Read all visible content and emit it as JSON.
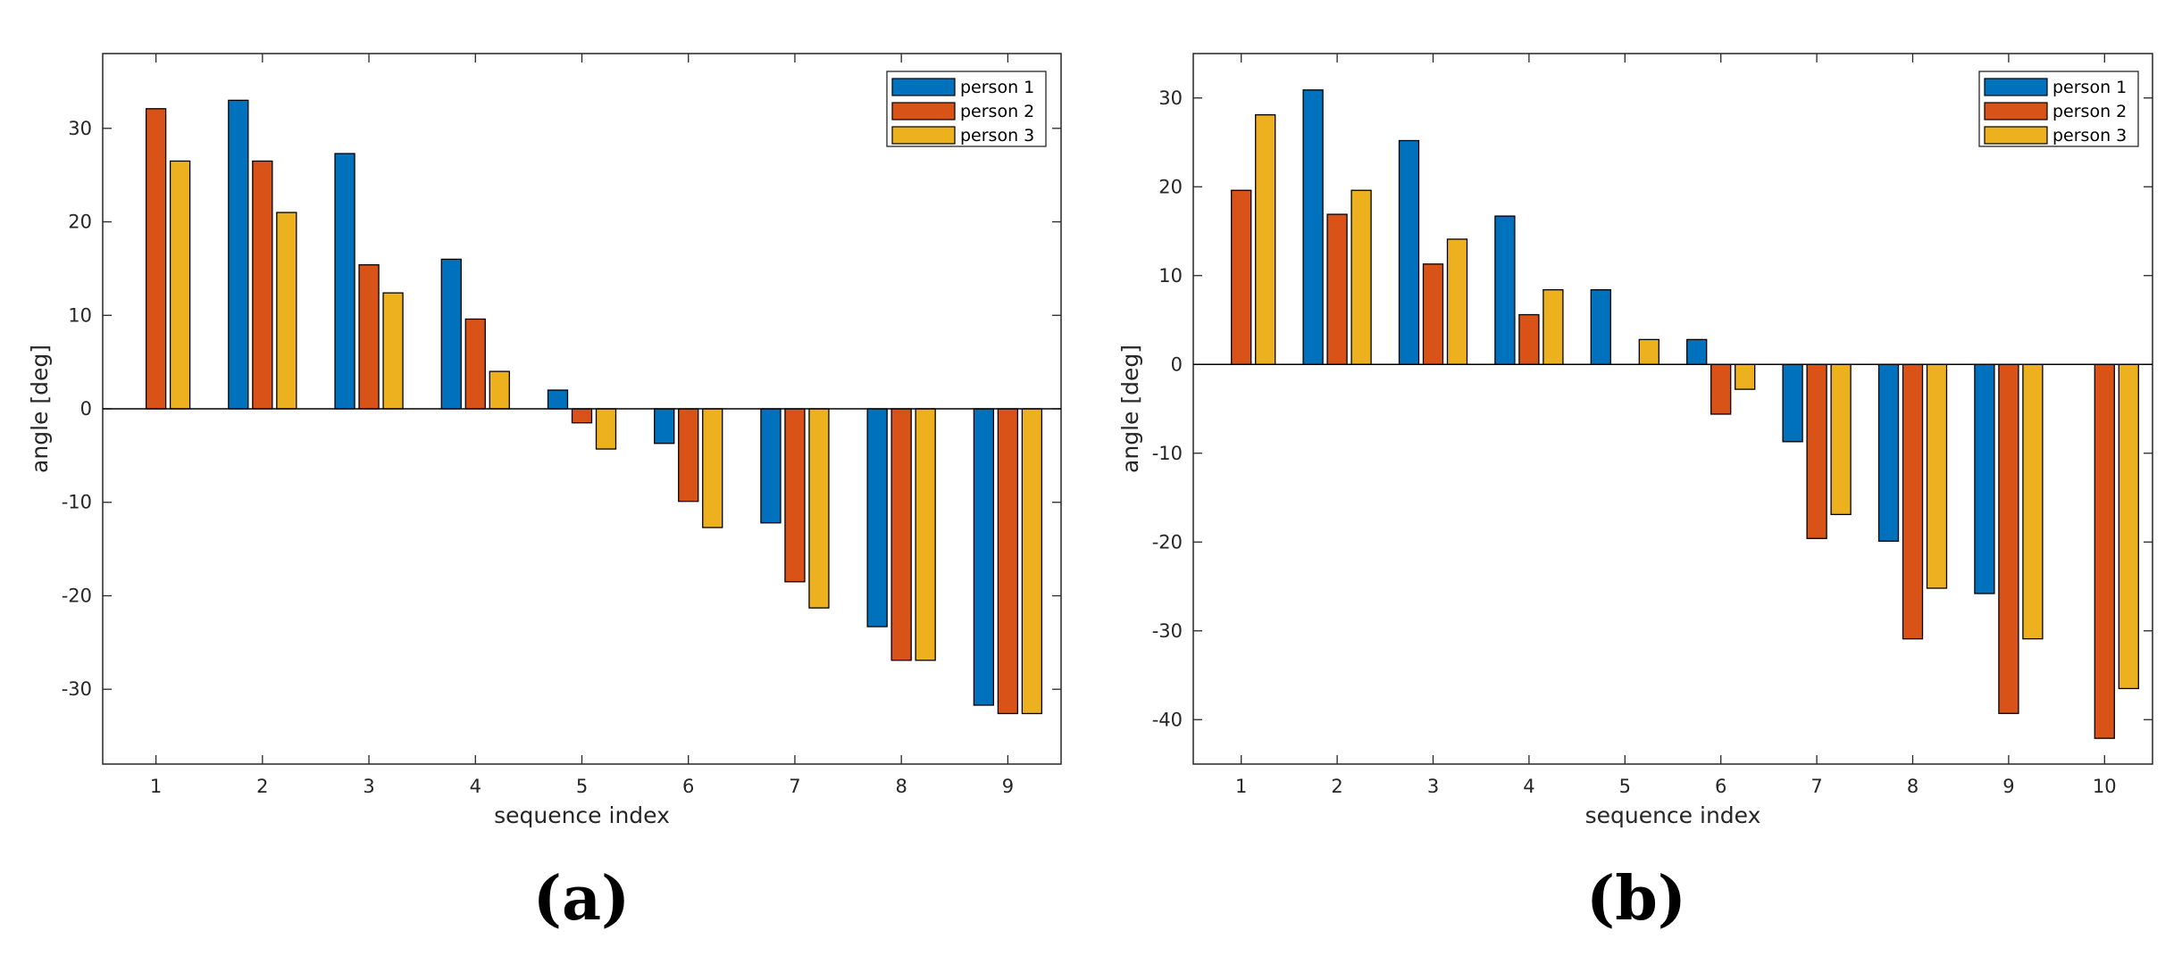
{
  "chart_data": [
    {
      "type": "bar",
      "panel_label": "(a)",
      "xlabel": "sequence index",
      "ylabel": "angle [deg]",
      "categories": [
        "1",
        "2",
        "3",
        "4",
        "5",
        "6",
        "7",
        "8",
        "9"
      ],
      "ylim": [
        -38,
        38
      ],
      "yticks": [
        -30,
        -20,
        -10,
        0,
        10,
        20,
        30
      ],
      "legend_position": "top-right",
      "series": [
        {
          "name": "person 1",
          "color": "#0072bd",
          "values": [
            0,
            33,
            27.3,
            16,
            2,
            -3.7,
            -12.2,
            -23.3,
            -31.7
          ]
        },
        {
          "name": "person 2",
          "color": "#d95319",
          "values": [
            32.1,
            26.5,
            15.4,
            9.6,
            -1.5,
            -9.9,
            -18.5,
            -26.9,
            -32.6
          ]
        },
        {
          "name": "person 3",
          "color": "#edb120",
          "values": [
            26.5,
            21,
            12.4,
            4,
            -4.3,
            -12.7,
            -21.3,
            -26.9,
            -32.6
          ]
        }
      ]
    },
    {
      "type": "bar",
      "panel_label": "(b)",
      "xlabel": "sequence index",
      "ylabel": "angle [deg]",
      "categories": [
        "1",
        "2",
        "3",
        "4",
        "5",
        "6",
        "7",
        "8",
        "9",
        "10"
      ],
      "ylim": [
        -45,
        35
      ],
      "yticks": [
        -40,
        -30,
        -20,
        -10,
        0,
        10,
        20,
        30
      ],
      "legend_position": "top-right",
      "series": [
        {
          "name": "person 1",
          "color": "#0072bd",
          "values": [
            0,
            30.9,
            25.2,
            16.7,
            8.4,
            2.8,
            -8.7,
            -19.9,
            -25.8,
            0
          ]
        },
        {
          "name": "person 2",
          "color": "#d95319",
          "values": [
            19.6,
            16.9,
            11.3,
            5.6,
            0,
            -5.6,
            -19.6,
            -30.9,
            -39.3,
            -42.1
          ]
        },
        {
          "name": "person 3",
          "color": "#edb120",
          "values": [
            28.1,
            19.6,
            14.1,
            8.4,
            2.8,
            -2.8,
            -16.9,
            -25.2,
            -30.9,
            -36.5
          ]
        }
      ]
    }
  ]
}
